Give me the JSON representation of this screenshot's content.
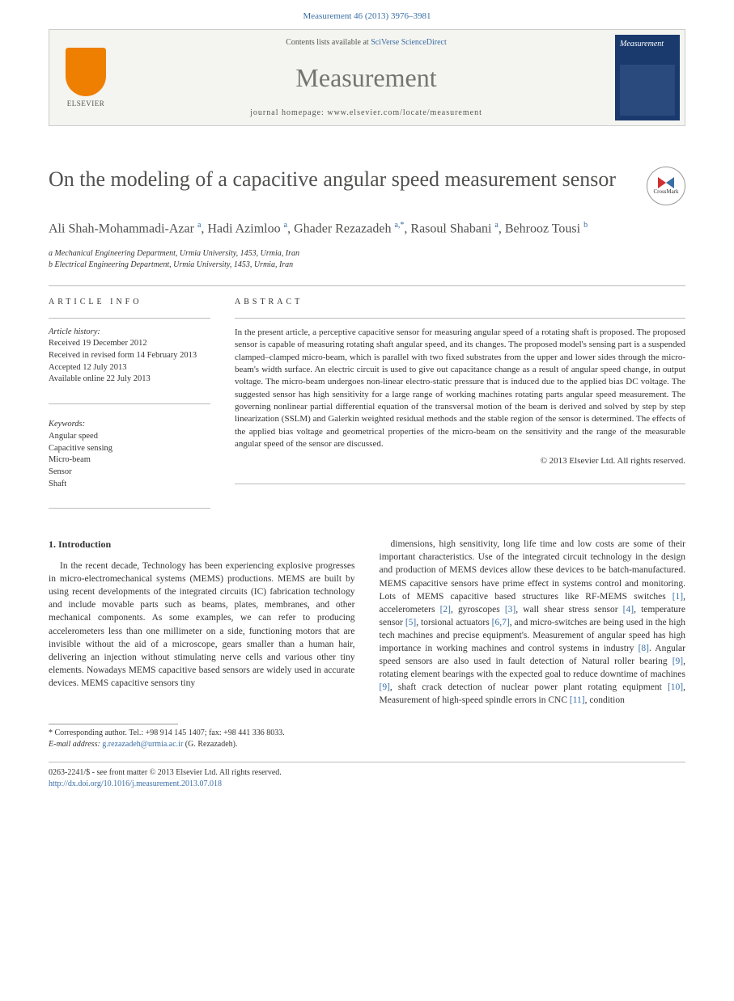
{
  "headerCitation": "Measurement 46 (2013) 3976–3981",
  "journalBox": {
    "contentsPrefix": "Contents lists available at ",
    "contentsLink": "SciVerse ScienceDirect",
    "journalName": "Measurement",
    "homepagePrefix": "journal homepage: ",
    "homepageUrl": "www.elsevier.com/locate/measurement",
    "publisherLabel": "ELSEVIER",
    "coverTitle": "Measurement"
  },
  "article": {
    "title": "On the modeling of a capacitive angular speed measurement sensor",
    "crossmarkLabel": "CrossMark",
    "authorsHtml": "Ali Shah-Mohammadi-Azar <sup>a</sup>, Hadi Azimloo <sup>a</sup>, Ghader Rezazadeh <sup>a,*</sup>, Rasoul Shabani <sup>a</sup>, Behrooz Tousi <sup>b</sup>",
    "affiliations": [
      "a Mechanical Engineering Department, Urmia University, 1453, Urmia, Iran",
      "b Electrical Engineering Department, Urmia University, 1453, Urmia, Iran"
    ]
  },
  "info": {
    "headingInfo": "ARTICLE INFO",
    "historyLabel": "Article history:",
    "history": [
      "Received 19 December 2012",
      "Received in revised form 14 February 2013",
      "Accepted 12 July 2013",
      "Available online 22 July 2013"
    ],
    "keywordsLabel": "Keywords:",
    "keywords": [
      "Angular speed",
      "Capacitive sensing",
      "Micro-beam",
      "Sensor",
      "Shaft"
    ]
  },
  "abstract": {
    "heading": "ABSTRACT",
    "text": "In the present article, a perceptive capacitive sensor for measuring angular speed of a rotating shaft is proposed. The proposed sensor is capable of measuring rotating shaft angular speed, and its changes. The proposed model's sensing part is a suspended clamped–clamped micro-beam, which is parallel with two fixed substrates from the upper and lower sides through the micro-beam's width surface. An electric circuit is used to give out capacitance change as a result of angular speed change, in output voltage. The micro-beam undergoes non-linear electro-static pressure that is induced due to the applied bias DC voltage. The suggested sensor has high sensitivity for a large range of working machines rotating parts angular speed measurement. The governing nonlinear partial differential equation of the transversal motion of the beam is derived and solved by step by step linearization (SSLM) and Galerkin weighted residual methods and the stable region of the sensor is determined. The effects of the applied bias voltage and geometrical properties of the micro-beam on the sensitivity and the range of the measurable angular speed of the sensor are discussed.",
    "copyright": "© 2013 Elsevier Ltd. All rights reserved."
  },
  "intro": {
    "heading": "1. Introduction",
    "para1": "In the recent decade, Technology has been experiencing explosive progresses in micro-electromechanical systems (MEMS) productions. MEMS are built by using recent developments of the integrated circuits (IC) fabrication technology and include movable parts such as beams, plates, membranes, and other mechanical components. As some examples, we can refer to producing accelerometers less than one millimeter on a side, functioning motors that are invisible without the aid of a microscope, gears smaller than a human hair, delivering an injection without stimulating nerve cells and various other tiny elements. Nowadays MEMS capacitive based sensors are widely used in accurate devices. MEMS capacitive sensors tiny",
    "para2": "dimensions, high sensitivity, long life time and low costs are some of their important characteristics. Use of the integrated circuit technology in the design and production of MEMS devices allow these devices to be batch-manufactured. MEMS capacitive sensors have prime effect in systems control and monitoring. Lots of MEMS capacitive based structures like RF-MEMS switches [1], accelerometers [2], gyroscopes [3], wall shear stress sensor [4], temperature sensor [5], torsional actuators [6,7], and micro-switches are being used in the high tech machines and precise equipment's. Measurement of angular speed has high importance in working machines and control systems in industry [8]. Angular speed sensors are also used in fault detection of Natural roller bearing [9], rotating element bearings with the expected goal to reduce downtime of machines [9], shaft crack detection of nuclear power plant rotating equipment [10], Measurement of high-speed spindle errors in CNC [11], condition"
  },
  "corresponding": {
    "label": "* Corresponding author. Tel.: +98 914 145 1407; fax: +98 441 336 8033.",
    "emailLabel": "E-mail address: ",
    "email": "g.rezazadeh@urmia.ac.ir",
    "emailSuffix": " (G. Rezazadeh)."
  },
  "footer": {
    "line1": "0263-2241/$ - see front matter © 2013 Elsevier Ltd. All rights reserved.",
    "doi": "http://dx.doi.org/10.1016/j.measurement.2013.07.018"
  },
  "colors": {
    "link": "#3a6ea5",
    "heading": "#515150",
    "elsevierOrange": "#ee7f00",
    "coverBlue": "#1a3a6e"
  }
}
